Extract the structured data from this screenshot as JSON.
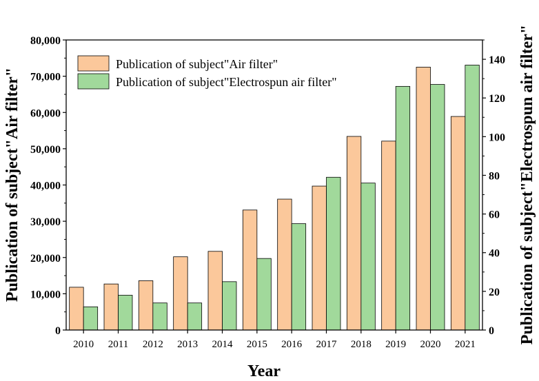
{
  "chart_data": {
    "type": "bar",
    "categories": [
      "2010",
      "2011",
      "2012",
      "2013",
      "2014",
      "2015",
      "2016",
      "2017",
      "2018",
      "2019",
      "2020",
      "2021"
    ],
    "xlabel": "Year",
    "ylabel_left": "Publication of subject\"Air filter\"",
    "ylabel_right": "Publication of subject\"Electrospun air filter\"",
    "ylim_left": [
      0,
      80000
    ],
    "ylim_right": [
      0,
      150
    ],
    "yticks_left": [
      0,
      10000,
      20000,
      30000,
      40000,
      50000,
      60000,
      70000,
      80000
    ],
    "yticks_left_labels": [
      "0",
      "10,000",
      "20,000",
      "30,000",
      "40,000",
      "50,000",
      "60,000",
      "70,000",
      "80,000"
    ],
    "yticks_right": [
      0,
      20,
      40,
      60,
      80,
      100,
      120,
      140
    ],
    "yticks_right_labels": [
      "0",
      "20",
      "40",
      "60",
      "80",
      "100",
      "120",
      "140"
    ],
    "legend_position": "top-left",
    "grid": false,
    "series": [
      {
        "name": "Publication of subject\"Air filter\"",
        "axis": "left",
        "color": "#fbc89b",
        "values": [
          11800,
          12700,
          13600,
          20200,
          21700,
          33100,
          36100,
          39700,
          53400,
          52100,
          72500,
          58900
        ]
      },
      {
        "name": "Publication of subject\"Electrospun air filter\"",
        "axis": "right",
        "color": "#a1d99b",
        "values": [
          12,
          18,
          14,
          14,
          25,
          37,
          55,
          79,
          76,
          126,
          127,
          137
        ]
      }
    ]
  }
}
